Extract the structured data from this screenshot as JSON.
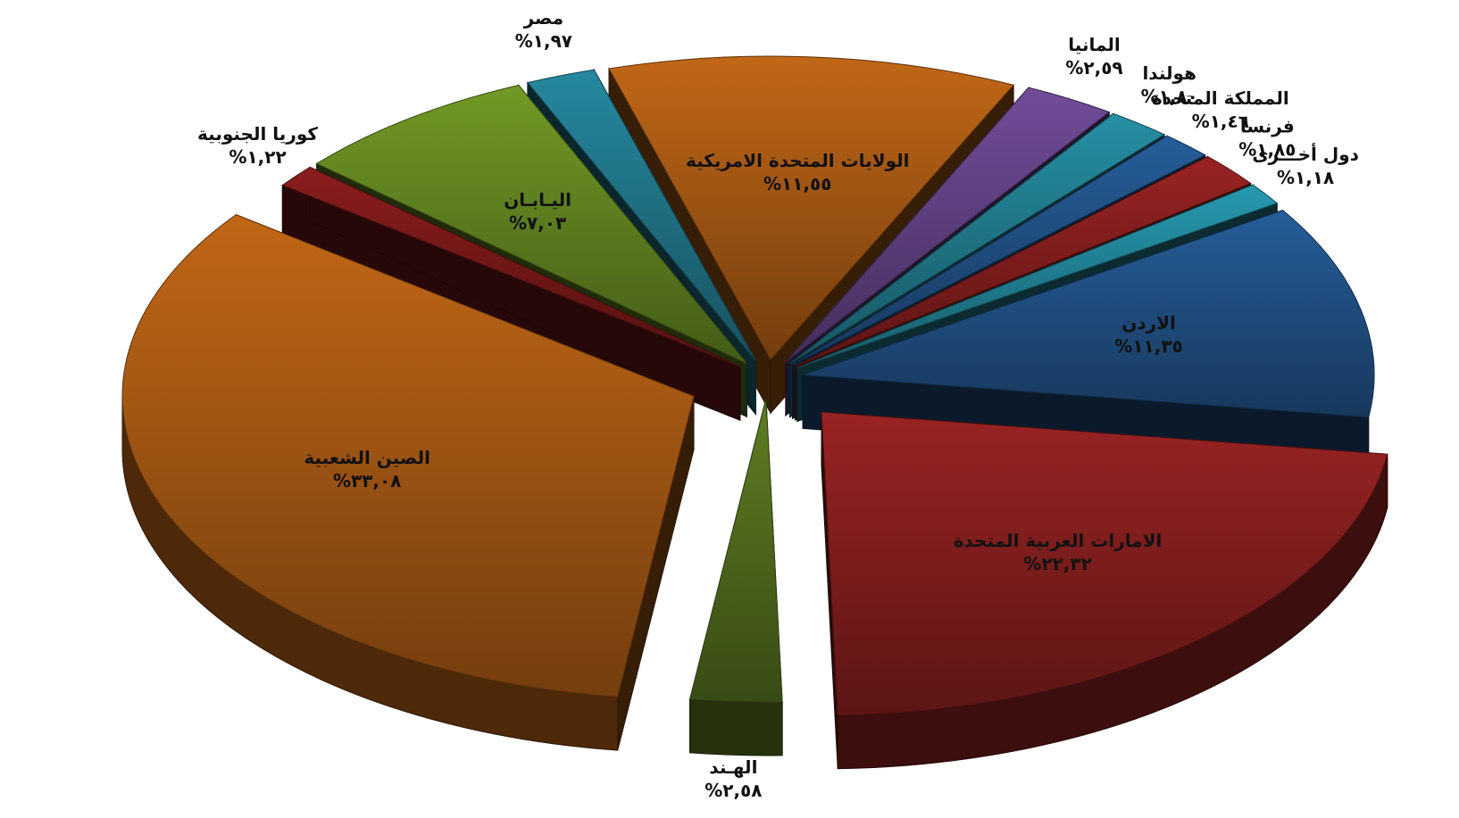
{
  "chart_data": {
    "type": "pie",
    "style": "3d-exploded",
    "slices": [
      {
        "label": "الامارات العربية المتحدة",
        "value_text": "%٢٢,٣٢",
        "value": 22.32,
        "color": "#7a1c1c"
      },
      {
        "label": "الهـند",
        "value_text": "%٢,٥٨",
        "value": 2.58,
        "color": "#4c641c"
      },
      {
        "label": "الصين الشعبية",
        "value_text": "%٣٣,٠٨",
        "value": 33.08,
        "color": "#9a5212"
      },
      {
        "label": "كوريا الجنوبية",
        "value_text": "%١,٢٢",
        "value": 1.22,
        "color": "#6f1717"
      },
      {
        "label": "اليـابـان",
        "value_text": "%٧,٠٣",
        "value": 7.03,
        "color": "#5b7a1e"
      },
      {
        "label": "مصر",
        "value_text": "%١,٩٧",
        "value": 1.97,
        "color": "#1e6d7f"
      },
      {
        "label": "الولايات المتحدة الامريكية",
        "value_text": "%١١,٥٥",
        "value": 11.55,
        "color": "#9a5212"
      },
      {
        "label": "المانيا",
        "value_text": "%٢,٥٩",
        "value": 2.59,
        "color": "#5a3d7a"
      },
      {
        "label": "هولندا",
        "value_text": "%١,٨٠",
        "value": 1.8,
        "color": "#1f7283"
      },
      {
        "label": "المملكة المتحدة",
        "value_text": "%١,٤٦",
        "value": 1.46,
        "color": "#1e4a7a"
      },
      {
        "label": "فرنسا",
        "value_text": "%١,٨٥",
        "value": 1.85,
        "color": "#7a1c1c"
      },
      {
        "label": "دول أخـــرى",
        "value_text": "%١,١٨",
        "value": 1.18,
        "color": "#1f7a8c"
      },
      {
        "label": "الاردن",
        "value_text": "%١١,٣٥",
        "value": 11.35,
        "color": "#1e4a7a"
      }
    ]
  }
}
